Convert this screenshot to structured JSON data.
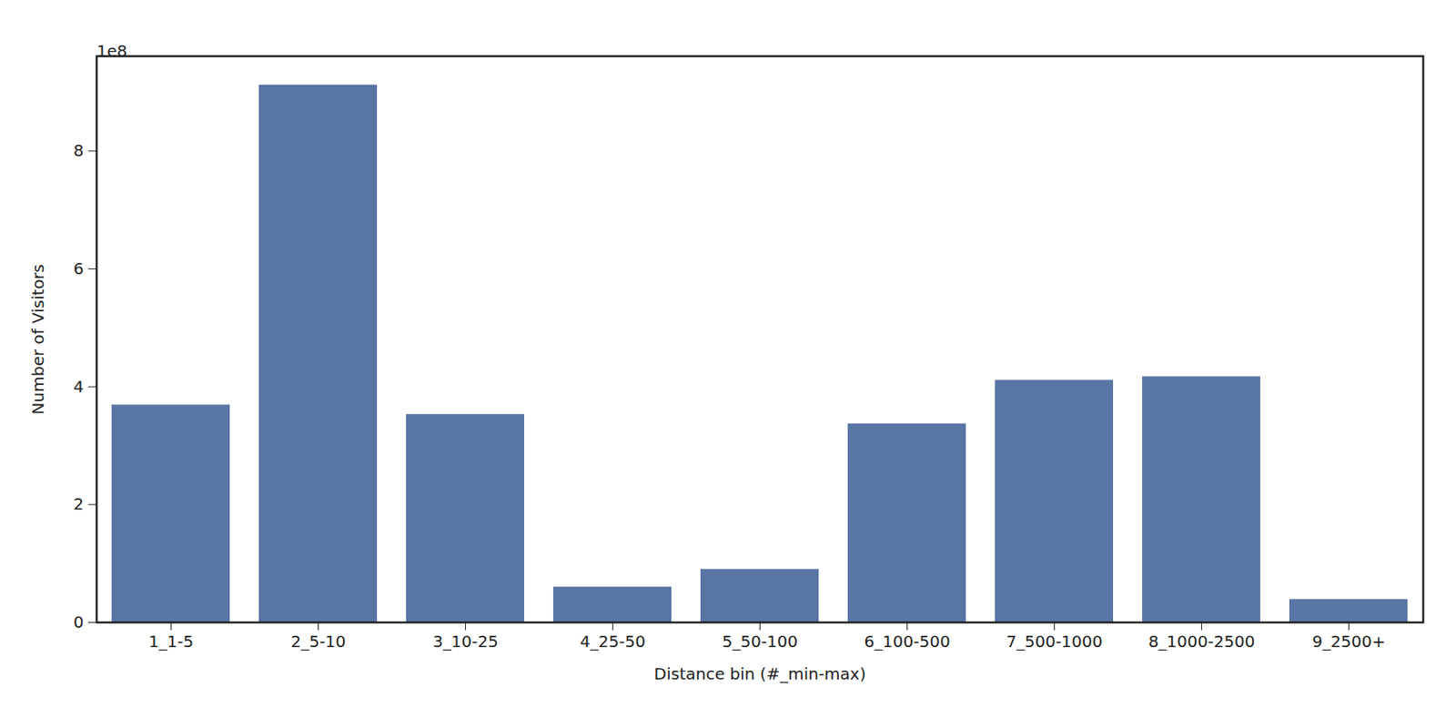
{
  "chart_data": {
    "type": "bar",
    "x_label": "Distance bin (#_min-max)",
    "y_label": "Number of Visitors",
    "annotations": [
      "1e8"
    ],
    "categories": [
      "1_1-5",
      "2_5-10",
      "3_10-25",
      "4_25-50",
      "5_50-100",
      "6_100-500",
      "7_500-1000",
      "8_1000-2500",
      "9_2500+"
    ],
    "values": [
      3.69,
      9.12,
      3.53,
      0.6,
      0.9,
      3.37,
      4.11,
      4.17,
      0.39
    ],
    "color": "#5875a4",
    "ylim": [
      0,
      9.61
    ],
    "yticks": [
      0,
      2,
      4,
      6,
      8
    ],
    "grid": false
  }
}
